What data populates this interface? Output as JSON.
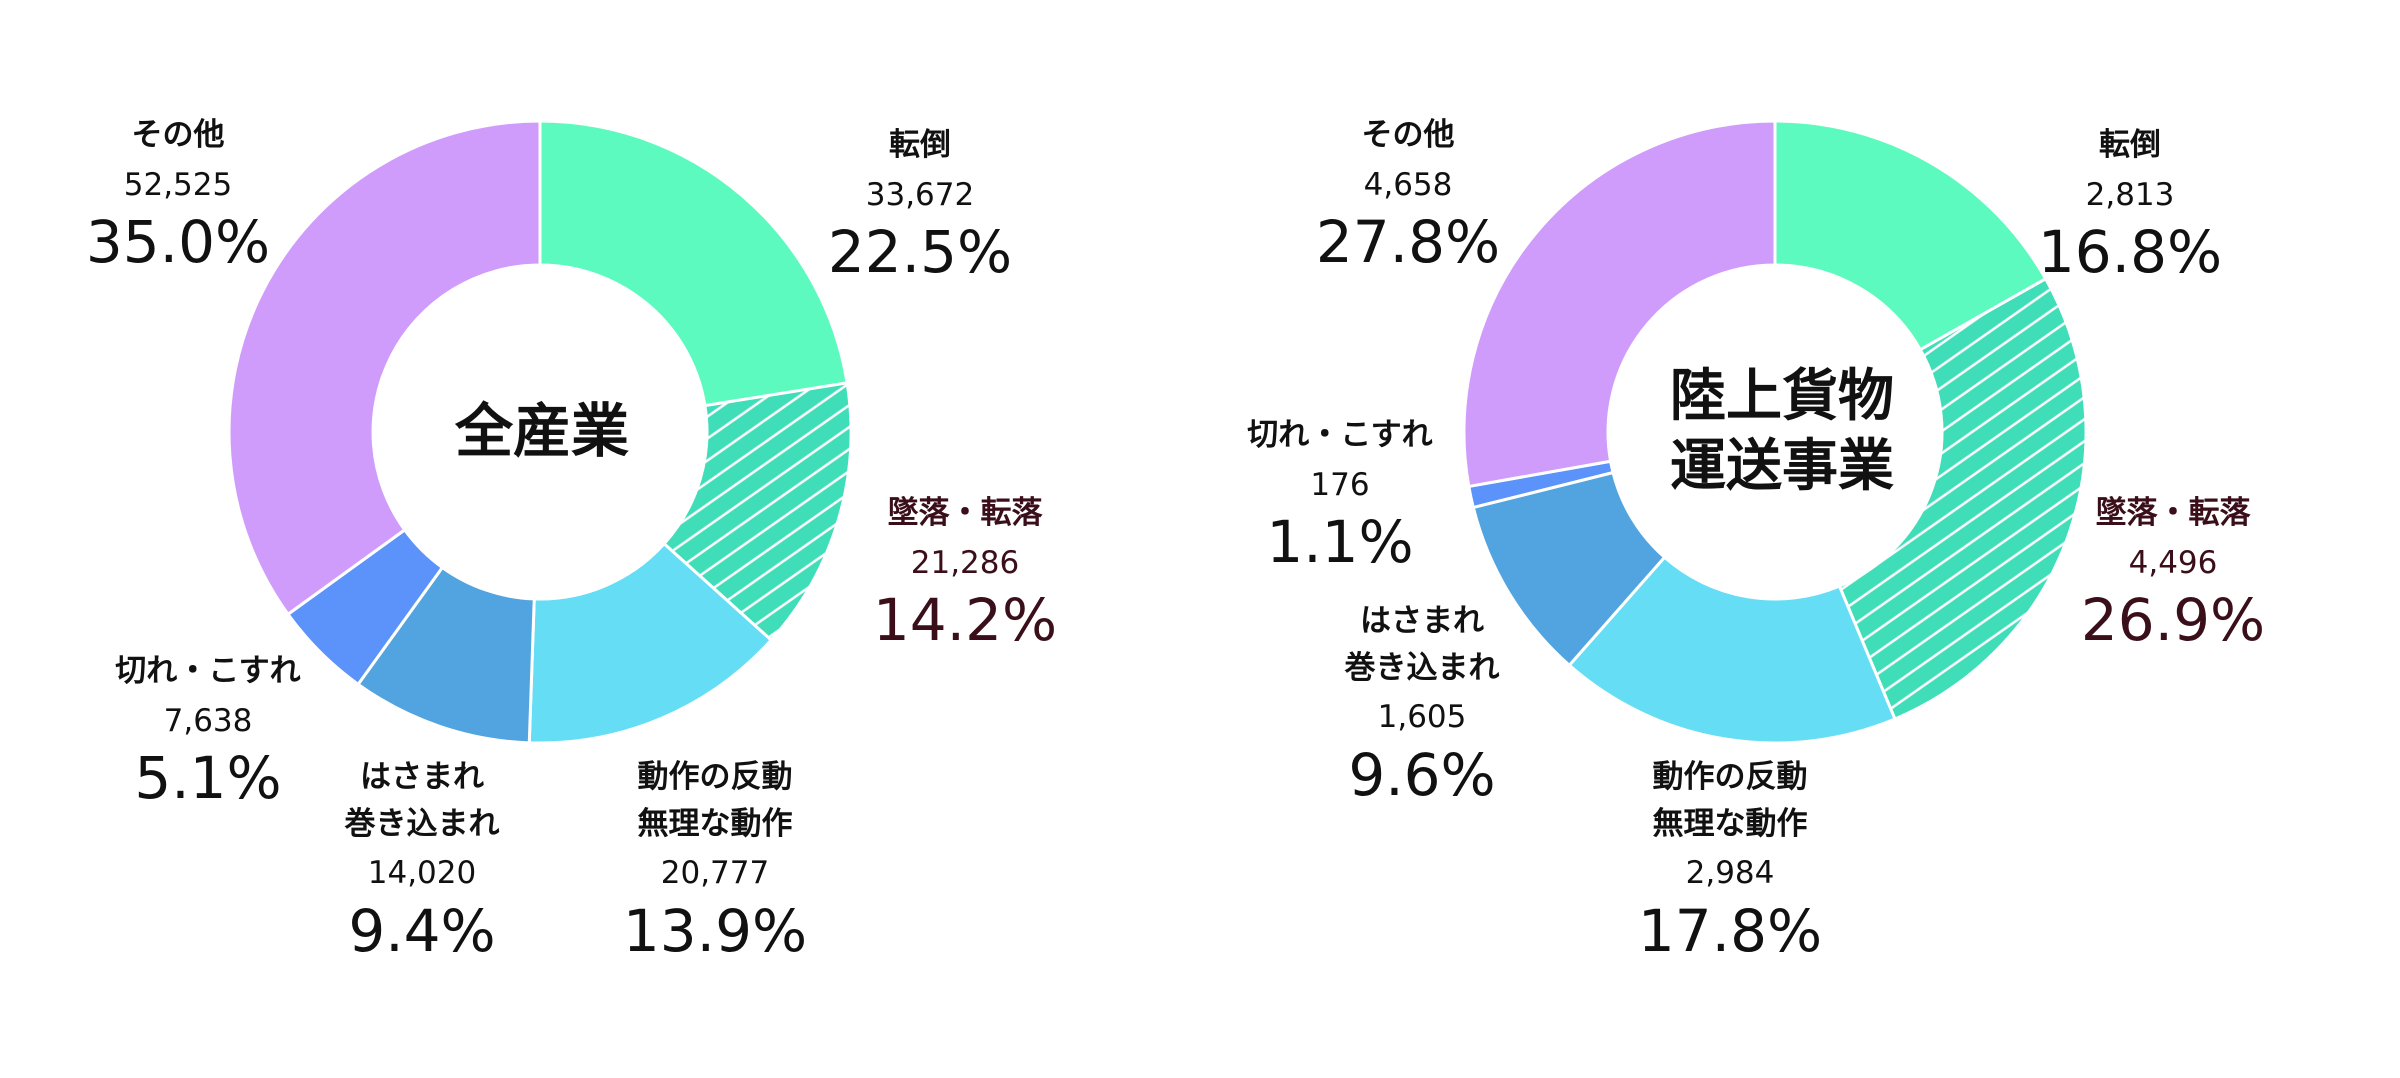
{
  "colors": {
    "tentou": "#5DFABF",
    "tsuiraku": "#3FDDB8",
    "dousa": "#64DDF5",
    "hasamare": "#52A4E0",
    "kire": "#5B93FB",
    "sonota": "#D09CFB"
  },
  "chart_data": [
    {
      "type": "pie",
      "donut": true,
      "center_label": "全産業",
      "segments": [
        {
          "key": "tentou",
          "name": [
            "転倒"
          ],
          "count": "33,672",
          "value": 22.5,
          "percent": "22.5%",
          "hatched": false,
          "emphasis": false
        },
        {
          "key": "tsuiraku",
          "name": [
            "墜落・転落"
          ],
          "count": "21,286",
          "value": 14.2,
          "percent": "14.2%",
          "hatched": true,
          "emphasis": true
        },
        {
          "key": "dousa",
          "name": [
            "動作の反動",
            "無理な動作"
          ],
          "count": "20,777",
          "value": 13.9,
          "percent": "13.9%",
          "hatched": false,
          "emphasis": false
        },
        {
          "key": "hasamare",
          "name": [
            "はさまれ",
            "巻き込まれ"
          ],
          "count": "14,020",
          "value": 9.4,
          "percent": "9.4%",
          "hatched": false,
          "emphasis": false
        },
        {
          "key": "kire",
          "name": [
            "切れ・こすれ"
          ],
          "count": "7,638",
          "value": 5.1,
          "percent": "5.1%",
          "hatched": false,
          "emphasis": false
        },
        {
          "key": "sonota",
          "name": [
            "その他"
          ],
          "count": "52,525",
          "value": 35.0,
          "percent": "35.0%",
          "hatched": false,
          "emphasis": false
        }
      ]
    },
    {
      "type": "pie",
      "donut": true,
      "center_label": "陸上貨物\n運送事業",
      "segments": [
        {
          "key": "tentou",
          "name": [
            "転倒"
          ],
          "count": "2,813",
          "value": 16.8,
          "percent": "16.8%",
          "hatched": false,
          "emphasis": false
        },
        {
          "key": "tsuiraku",
          "name": [
            "墜落・転落"
          ],
          "count": "4,496",
          "value": 26.9,
          "percent": "26.9%",
          "hatched": true,
          "emphasis": true
        },
        {
          "key": "dousa",
          "name": [
            "動作の反動",
            "無理な動作"
          ],
          "count": "2,984",
          "value": 17.8,
          "percent": "17.8%",
          "hatched": false,
          "emphasis": false
        },
        {
          "key": "hasamare",
          "name": [
            "はさまれ",
            "巻き込まれ"
          ],
          "count": "1,605",
          "value": 9.6,
          "percent": "9.6%",
          "hatched": false,
          "emphasis": false
        },
        {
          "key": "kire",
          "name": [
            "切れ・こすれ"
          ],
          "count": "176",
          "value": 1.1,
          "percent": "1.1%",
          "hatched": false,
          "emphasis": false
        },
        {
          "key": "sonota",
          "name": [
            "その他"
          ],
          "count": "4,658",
          "value": 27.8,
          "percent": "27.8%",
          "hatched": false,
          "emphasis": false
        }
      ]
    }
  ]
}
